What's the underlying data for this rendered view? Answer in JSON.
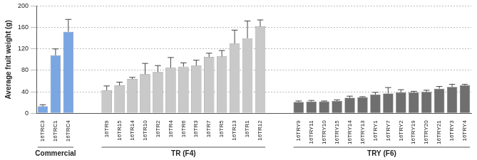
{
  "chart_data": {
    "type": "bar",
    "y_label": "Average fruit weight (g)",
    "ylim": [
      0,
      200
    ],
    "yticks": [
      0,
      40,
      80,
      120,
      160,
      200
    ],
    "grid": true,
    "groups": [
      {
        "name": "Commercial",
        "color": "#7aa6e3",
        "categories": [
          "16TRC3",
          "16TRC1",
          "16TRC4"
        ],
        "values": [
          13,
          108,
          152
        ],
        "errors": [
          3,
          12,
          23
        ]
      },
      {
        "name": "TR (F4)",
        "color": "#c9c9c9",
        "categories": [
          "16TR9",
          "16TR15",
          "16TR14",
          "16TR10",
          "16TR2",
          "16TR4",
          "16TR6",
          "16TR3",
          "16TR7",
          "16TR5",
          "16TR13",
          "16TR1",
          "16TR12"
        ],
        "values": [
          43,
          52,
          64,
          73,
          77,
          85,
          87,
          89,
          105,
          106,
          130,
          140,
          162
        ],
        "errors": [
          8,
          6,
          3,
          20,
          12,
          19,
          7,
          10,
          7,
          11,
          25,
          32,
          12
        ]
      },
      {
        "name": "TRY (F6)",
        "color": "#6f6f6f",
        "categories": [
          "16TRY9",
          "16TRY11",
          "16TRY10",
          "16TRY15",
          "16TRY14",
          "16TRY13",
          "16TRY1",
          "16TRY7",
          "16TRY2",
          "16TRY19",
          "16TRY20",
          "16TRY21",
          "16TRY3",
          "16TRY4"
        ],
        "values": [
          21,
          22,
          22,
          23,
          29,
          30,
          35,
          37,
          39,
          39,
          40,
          46,
          49,
          52
        ],
        "errors": [
          2,
          2,
          1,
          2,
          3,
          1,
          4,
          11,
          5,
          2,
          3,
          4,
          5,
          2
        ]
      }
    ]
  }
}
